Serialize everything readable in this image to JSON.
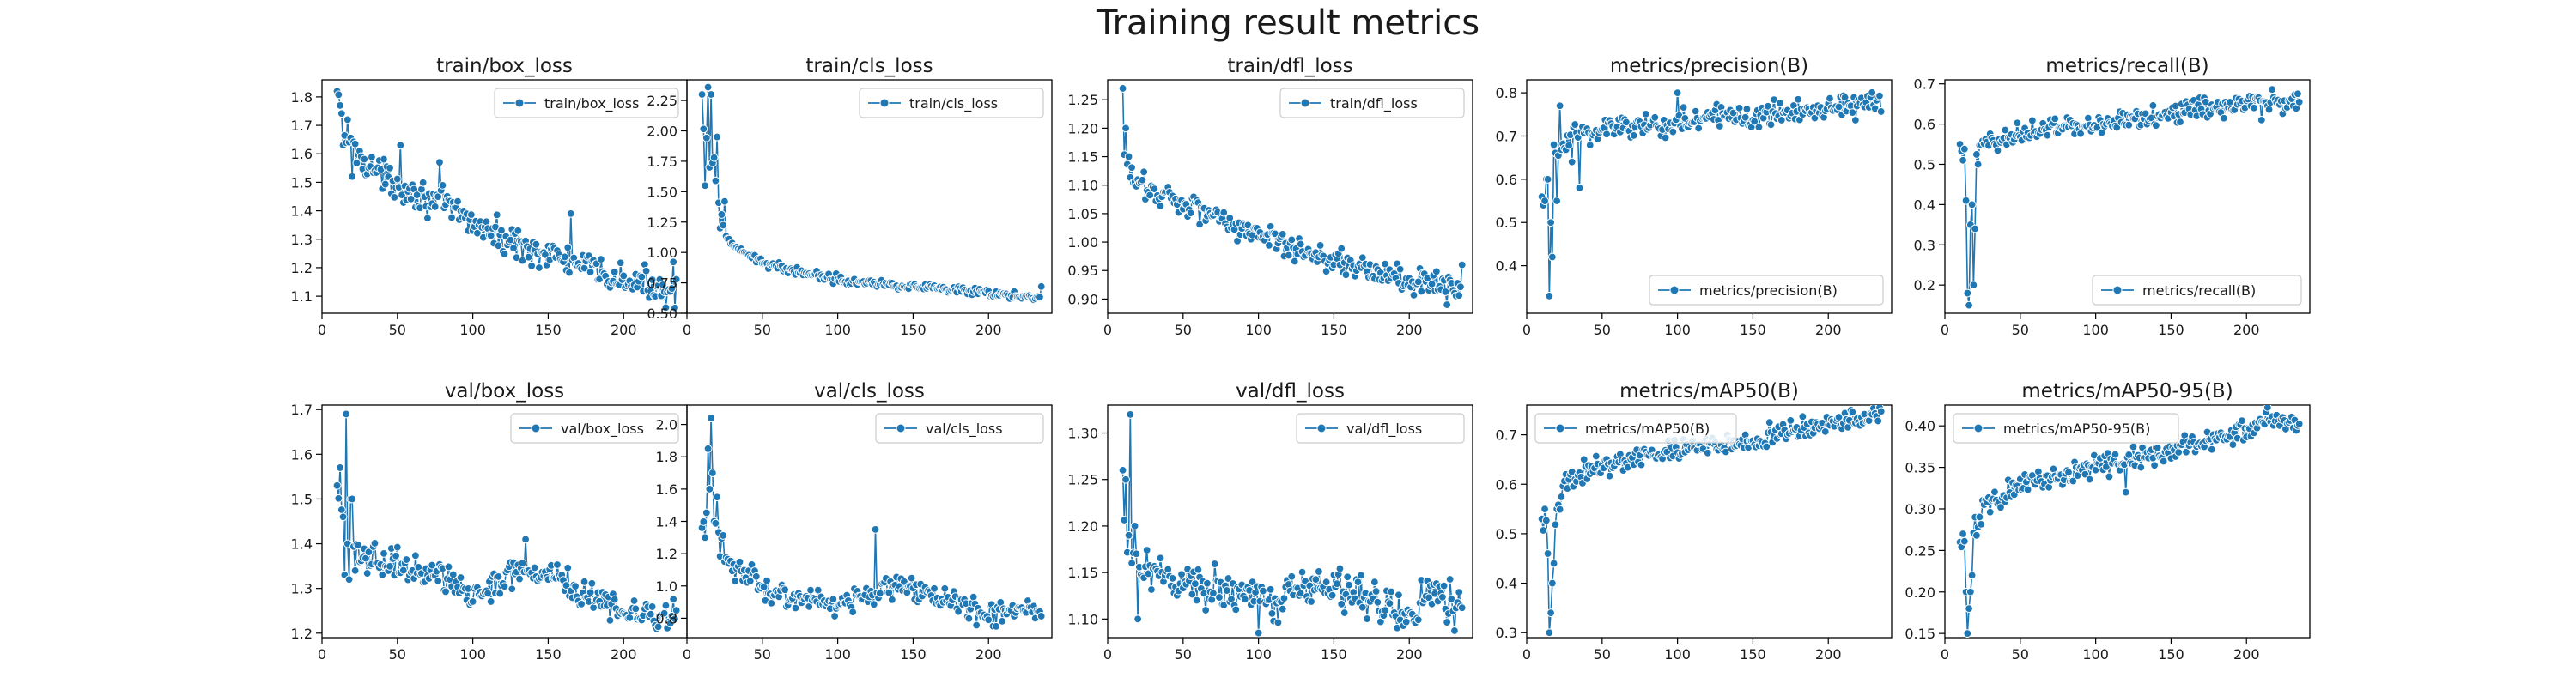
{
  "figure": {
    "title": "Training result metrics",
    "colors": {
      "series": "#1f77b4",
      "axis": "#000000",
      "background": "#ffffff"
    },
    "legend_icon": "line-with-dot"
  },
  "chart_data": [
    {
      "type": "line",
      "title": "train/box_loss",
      "series_name": "train/box_loss",
      "legend": "top-right",
      "grid": false,
      "xlim": [
        0,
        242
      ],
      "ylim": [
        1.04,
        1.86
      ],
      "xticks": [
        0,
        50,
        100,
        150,
        200
      ],
      "yticks": [
        1.1,
        1.2,
        1.3,
        1.4,
        1.5,
        1.6,
        1.7,
        1.8
      ],
      "x_range": [
        10,
        235
      ],
      "trend": [
        [
          10,
          1.8
        ],
        [
          15,
          1.67
        ],
        [
          20,
          1.62
        ],
        [
          40,
          1.52
        ],
        [
          80,
          1.42
        ],
        [
          120,
          1.3
        ],
        [
          160,
          1.23
        ],
        [
          200,
          1.15
        ],
        [
          235,
          1.13
        ]
      ],
      "noise": 0.05,
      "outliers": [
        [
          10,
          1.82
        ],
        [
          12,
          1.77
        ],
        [
          14,
          1.63
        ],
        [
          17,
          1.72
        ],
        [
          20,
          1.52
        ],
        [
          52,
          1.63
        ],
        [
          78,
          1.57
        ],
        [
          165,
          1.39
        ],
        [
          228,
          1.06
        ],
        [
          233,
          1.22
        ]
      ]
    },
    {
      "type": "line",
      "title": "train/cls_loss",
      "series_name": "train/cls_loss",
      "legend": "top-right",
      "grid": false,
      "xlim": [
        0,
        242
      ],
      "ylim": [
        0.5,
        2.42
      ],
      "xticks": [
        0,
        50,
        100,
        150,
        200
      ],
      "yticks": [
        0.5,
        0.75,
        1.0,
        1.25,
        1.5,
        1.75,
        2.0,
        2.25
      ],
      "x_range": [
        10,
        235
      ],
      "trend": [
        [
          10,
          2.05
        ],
        [
          15,
          1.85
        ],
        [
          20,
          1.5
        ],
        [
          25,
          1.15
        ],
        [
          35,
          1.0
        ],
        [
          60,
          0.88
        ],
        [
          100,
          0.78
        ],
        [
          150,
          0.72
        ],
        [
          200,
          0.66
        ],
        [
          235,
          0.63
        ]
      ],
      "noise": 0.03,
      "outliers": [
        [
          10,
          2.3
        ],
        [
          12,
          1.55
        ],
        [
          14,
          2.36
        ],
        [
          15,
          1.7
        ],
        [
          16,
          2.3
        ],
        [
          18,
          1.78
        ],
        [
          20,
          1.95
        ],
        [
          22,
          1.2
        ],
        [
          25,
          1.42
        ],
        [
          235,
          0.72
        ]
      ]
    },
    {
      "type": "line",
      "title": "train/dfl_loss",
      "series_name": "train/dfl_loss",
      "legend": "top-right",
      "grid": false,
      "xlim": [
        0,
        242
      ],
      "ylim": [
        0.875,
        1.285
      ],
      "xticks": [
        0,
        50,
        100,
        150,
        200
      ],
      "yticks": [
        0.9,
        0.95,
        1.0,
        1.05,
        1.1,
        1.15,
        1.2,
        1.25
      ],
      "x_range": [
        10,
        235
      ],
      "trend": [
        [
          10,
          1.14
        ],
        [
          20,
          1.1
        ],
        [
          40,
          1.08
        ],
        [
          70,
          1.05
        ],
        [
          100,
          1.01
        ],
        [
          150,
          0.97
        ],
        [
          200,
          0.93
        ],
        [
          235,
          0.92
        ]
      ],
      "noise": 0.022,
      "outliers": [
        [
          10,
          1.27
        ],
        [
          12,
          1.2
        ],
        [
          14,
          1.15
        ],
        [
          165,
          0.95
        ],
        [
          225,
          0.89
        ],
        [
          235,
          0.96
        ]
      ]
    },
    {
      "type": "line",
      "title": "metrics/precision(B)",
      "series_name": "metrics/precision(B)",
      "legend": "bottom-right",
      "grid": false,
      "xlim": [
        0,
        242
      ],
      "ylim": [
        0.29,
        0.83
      ],
      "xticks": [
        0,
        50,
        100,
        150,
        200
      ],
      "yticks": [
        0.4,
        0.5,
        0.6,
        0.7,
        0.8
      ],
      "x_range": [
        10,
        235
      ],
      "trend": [
        [
          10,
          0.55
        ],
        [
          20,
          0.65
        ],
        [
          30,
          0.7
        ],
        [
          50,
          0.72
        ],
        [
          100,
          0.73
        ],
        [
          150,
          0.75
        ],
        [
          200,
          0.77
        ],
        [
          235,
          0.78
        ]
      ],
      "noise": 0.03,
      "outliers": [
        [
          12,
          0.55
        ],
        [
          14,
          0.6
        ],
        [
          15,
          0.33
        ],
        [
          16,
          0.5
        ],
        [
          17,
          0.42
        ],
        [
          18,
          0.68
        ],
        [
          20,
          0.55
        ],
        [
          22,
          0.77
        ],
        [
          30,
          0.64
        ],
        [
          35,
          0.58
        ],
        [
          100,
          0.8
        ]
      ]
    },
    {
      "type": "line",
      "title": "metrics/recall(B)",
      "series_name": "metrics/recall(B)",
      "legend": "bottom-right",
      "grid": false,
      "xlim": [
        0,
        242
      ],
      "ylim": [
        0.13,
        0.71
      ],
      "xticks": [
        0,
        50,
        100,
        150,
        200
      ],
      "yticks": [
        0.2,
        0.3,
        0.4,
        0.5,
        0.6,
        0.7
      ],
      "x_range": [
        10,
        235
      ],
      "trend": [
        [
          10,
          0.54
        ],
        [
          20,
          0.5
        ],
        [
          25,
          0.55
        ],
        [
          50,
          0.58
        ],
        [
          100,
          0.6
        ],
        [
          150,
          0.63
        ],
        [
          200,
          0.65
        ],
        [
          235,
          0.66
        ]
      ],
      "noise": 0.025,
      "outliers": [
        [
          10,
          0.55
        ],
        [
          12,
          0.51
        ],
        [
          14,
          0.41
        ],
        [
          15,
          0.18
        ],
        [
          16,
          0.15
        ],
        [
          17,
          0.35
        ],
        [
          18,
          0.4
        ],
        [
          19,
          0.2
        ],
        [
          20,
          0.34
        ],
        [
          22,
          0.5
        ],
        [
          210,
          0.61
        ]
      ]
    },
    {
      "type": "line",
      "title": "val/box_loss",
      "series_name": "val/box_loss",
      "legend": "top-right",
      "grid": false,
      "xlim": [
        0,
        242
      ],
      "ylim": [
        1.19,
        1.71
      ],
      "xticks": [
        0,
        50,
        100,
        150,
        200
      ],
      "yticks": [
        1.2,
        1.3,
        1.4,
        1.5,
        1.6,
        1.7
      ],
      "x_range": [
        10,
        235
      ],
      "trend": [
        [
          10,
          1.5
        ],
        [
          20,
          1.38
        ],
        [
          40,
          1.36
        ],
        [
          80,
          1.33
        ],
        [
          100,
          1.28
        ],
        [
          130,
          1.34
        ],
        [
          150,
          1.33
        ],
        [
          180,
          1.28
        ],
        [
          200,
          1.24
        ],
        [
          235,
          1.24
        ]
      ],
      "noise": 0.03,
      "outliers": [
        [
          10,
          1.53
        ],
        [
          12,
          1.57
        ],
        [
          14,
          1.46
        ],
        [
          15,
          1.33
        ],
        [
          16,
          1.69
        ],
        [
          17,
          1.4
        ],
        [
          18,
          1.32
        ],
        [
          19,
          1.5
        ],
        [
          20,
          1.5
        ],
        [
          22,
          1.34
        ],
        [
          135,
          1.41
        ]
      ]
    },
    {
      "type": "line",
      "title": "val/cls_loss",
      "series_name": "val/cls_loss",
      "legend": "top-right",
      "grid": false,
      "xlim": [
        0,
        242
      ],
      "ylim": [
        0.68,
        2.12
      ],
      "xticks": [
        0,
        50,
        100,
        150,
        200
      ],
      "yticks": [
        0.8,
        1.0,
        1.2,
        1.4,
        1.6,
        1.8,
        2.0
      ],
      "x_range": [
        10,
        235
      ],
      "trend": [
        [
          10,
          1.35
        ],
        [
          15,
          1.6
        ],
        [
          20,
          1.3
        ],
        [
          30,
          1.1
        ],
        [
          60,
          0.95
        ],
        [
          100,
          0.9
        ],
        [
          140,
          1.0
        ],
        [
          160,
          0.95
        ],
        [
          200,
          0.82
        ],
        [
          235,
          0.85
        ]
      ],
      "noise": 0.07,
      "outliers": [
        [
          10,
          1.36
        ],
        [
          12,
          1.3
        ],
        [
          14,
          1.85
        ],
        [
          15,
          1.6
        ],
        [
          16,
          2.04
        ],
        [
          17,
          1.7
        ],
        [
          18,
          1.4
        ],
        [
          20,
          1.55
        ],
        [
          125,
          1.35
        ],
        [
          205,
          0.75
        ]
      ]
    },
    {
      "type": "line",
      "title": "val/dfl_loss",
      "series_name": "val/dfl_loss",
      "legend": "top-right",
      "grid": false,
      "xlim": [
        0,
        242
      ],
      "ylim": [
        1.08,
        1.33
      ],
      "xticks": [
        0,
        50,
        100,
        150,
        200
      ],
      "yticks": [
        1.1,
        1.15,
        1.2,
        1.25,
        1.3
      ],
      "x_range": [
        10,
        235
      ],
      "trend": [
        [
          10,
          1.2
        ],
        [
          20,
          1.15
        ],
        [
          40,
          1.14
        ],
        [
          80,
          1.13
        ],
        [
          100,
          1.12
        ],
        [
          140,
          1.14
        ],
        [
          180,
          1.12
        ],
        [
          195,
          1.1
        ],
        [
          215,
          1.13
        ],
        [
          235,
          1.105
        ]
      ],
      "noise": 0.02,
      "outliers": [
        [
          10,
          1.26
        ],
        [
          12,
          1.25
        ],
        [
          14,
          1.19
        ],
        [
          15,
          1.32
        ],
        [
          16,
          1.16
        ],
        [
          18,
          1.2
        ],
        [
          20,
          1.1
        ],
        [
          100,
          1.085
        ]
      ]
    },
    {
      "type": "line",
      "title": "metrics/mAP50(B)",
      "series_name": "metrics/mAP50(B)",
      "legend": "top-left",
      "grid": false,
      "xlim": [
        0,
        242
      ],
      "ylim": [
        0.29,
        0.76
      ],
      "xticks": [
        0,
        50,
        100,
        150,
        200
      ],
      "yticks": [
        0.3,
        0.4,
        0.5,
        0.6,
        0.7
      ],
      "x_range": [
        10,
        235
      ],
      "trend": [
        [
          10,
          0.53
        ],
        [
          18,
          0.5
        ],
        [
          25,
          0.6
        ],
        [
          50,
          0.64
        ],
        [
          100,
          0.67
        ],
        [
          150,
          0.69
        ],
        [
          200,
          0.72
        ],
        [
          235,
          0.74
        ]
      ],
      "noise": 0.02,
      "outliers": [
        [
          10,
          0.53
        ],
        [
          12,
          0.55
        ],
        [
          14,
          0.46
        ],
        [
          15,
          0.3
        ],
        [
          16,
          0.34
        ],
        [
          17,
          0.4
        ],
        [
          18,
          0.44
        ],
        [
          20,
          0.55
        ]
      ]
    },
    {
      "type": "line",
      "title": "metrics/mAP50-95(B)",
      "series_name": "metrics/mAP50-95(B)",
      "legend": "top-left",
      "grid": false,
      "xlim": [
        0,
        242
      ],
      "ylim": [
        0.145,
        0.425
      ],
      "xticks": [
        0,
        50,
        100,
        150,
        200
      ],
      "yticks": [
        0.15,
        0.2,
        0.25,
        0.3,
        0.35,
        0.4
      ],
      "x_range": [
        10,
        235
      ],
      "trend": [
        [
          10,
          0.26
        ],
        [
          18,
          0.25
        ],
        [
          25,
          0.3
        ],
        [
          50,
          0.33
        ],
        [
          100,
          0.35
        ],
        [
          150,
          0.37
        ],
        [
          200,
          0.395
        ],
        [
          215,
          0.41
        ],
        [
          235,
          0.4
        ]
      ],
      "noise": 0.012,
      "outliers": [
        [
          10,
          0.26
        ],
        [
          12,
          0.27
        ],
        [
          14,
          0.2
        ],
        [
          15,
          0.15
        ],
        [
          16,
          0.18
        ],
        [
          17,
          0.2
        ],
        [
          18,
          0.22
        ],
        [
          20,
          0.29
        ],
        [
          120,
          0.32
        ]
      ]
    }
  ]
}
